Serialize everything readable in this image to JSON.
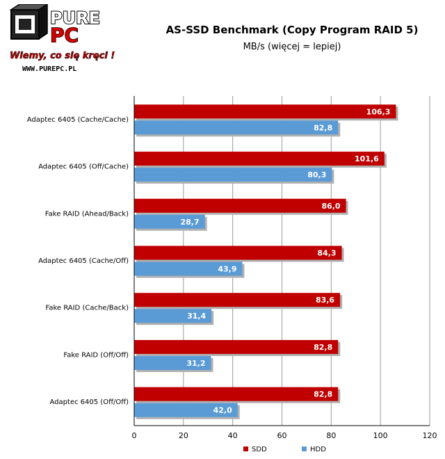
{
  "logo": {
    "brand_top": "PURE",
    "brand_bottom": "PC",
    "slogan": "Wiemy, co się kręci !",
    "url": "WWW.PUREPC.PL"
  },
  "chart_data": {
    "type": "bar",
    "orientation": "horizontal",
    "title": "AS-SSD Benchmark (Copy Program RAID 5)",
    "subtitle": "MB/s (więcej = lepiej)",
    "xlim": [
      0,
      120
    ],
    "xticks": [
      0,
      20,
      40,
      60,
      80,
      100,
      120
    ],
    "grid": true,
    "legend_position": "bottom-right",
    "categories": [
      "Adaptec 6405 (Cache/Cache)",
      "Adaptec 6405 (Off/Cache)",
      "Fake RAID (Ahead/Back)",
      "Adaptec 6405 (Cache/Off)",
      "Fake RAID (Cache/Back)",
      "Fake RAID (Off/Off)",
      "Adaptec 6405 (Off/Off)"
    ],
    "series": [
      {
        "name": "SDD",
        "color": "#c00000",
        "values": [
          106.3,
          101.6,
          86.0,
          84.3,
          83.6,
          82.8,
          82.8
        ],
        "labels": [
          "106,3",
          "101,6",
          "86,0",
          "84,3",
          "83,6",
          "82,8",
          "82,8"
        ]
      },
      {
        "name": "HDD",
        "color": "#5b9bd5",
        "values": [
          82.8,
          80.3,
          28.7,
          43.9,
          31.4,
          31.2,
          42.0
        ],
        "labels": [
          "82,8",
          "80,3",
          "28,7",
          "43,9",
          "31,4",
          "31,2",
          "42,0"
        ]
      }
    ]
  }
}
